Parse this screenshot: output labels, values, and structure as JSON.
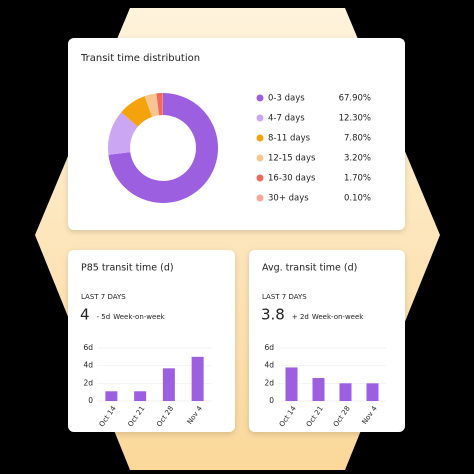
{
  "chart_data": [
    {
      "type": "donut",
      "title": "Transit time distribution",
      "categories": [
        "0-3 days",
        "4-7 days",
        "8-11 days",
        "12-15 days",
        "16-30 days",
        "30+ days"
      ],
      "values": [
        67.9,
        12.3,
        7.8,
        3.2,
        1.7,
        0.1
      ],
      "value_labels": [
        "67.90%",
        "12.30%",
        "7.80%",
        "3.20%",
        "1.70%",
        "0.10%"
      ],
      "colors": [
        "#9b5fe0",
        "#cba6f2",
        "#f5a30c",
        "#f8c592",
        "#ee6b5b",
        "#f5a79c"
      ]
    },
    {
      "type": "bar",
      "title": "P85 transit time (d)",
      "period": "LAST 7 DAYS",
      "headline": 4,
      "delta": "- 5d",
      "delta_color": "#3a9e86",
      "delta_note": "Week-on-week",
      "categories": [
        "Oct 14",
        "Oct 21",
        "Oct 28",
        "Nov 4"
      ],
      "values": [
        1.1,
        1.1,
        3.7,
        5
      ],
      "color": "#9b5fe0",
      "ylim": [
        0,
        6
      ],
      "yticks": [
        0,
        {
          "value": 2,
          "label": "2d"
        },
        {
          "value": 4,
          "label": "4d"
        },
        {
          "value": 6,
          "label": "6d"
        }
      ],
      "grid": true
    },
    {
      "type": "bar",
      "title": "Avg. transit time (d)",
      "period": "LAST 7 DAYS",
      "headline": 3.8,
      "delta": "+ 2d",
      "delta_color": "#e0574a",
      "delta_note": "Week-on-week",
      "categories": [
        "Oct 14",
        "Oct 21",
        "Oct 28",
        "Nov 4"
      ],
      "values": [
        3.8,
        2.6,
        2,
        2
      ],
      "color": "#9b5fe0",
      "ylim": [
        0,
        6
      ],
      "yticks": [
        0,
        {
          "value": 2,
          "label": "2d"
        },
        {
          "value": 4,
          "label": "4d"
        },
        {
          "value": 6,
          "label": "6d"
        }
      ],
      "grid": true
    }
  ]
}
